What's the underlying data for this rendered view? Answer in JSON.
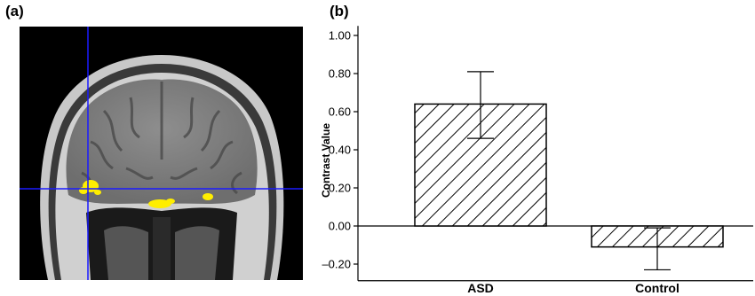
{
  "panels": {
    "a_label": "(a)",
    "b_label": "(b)"
  },
  "brain_image": {
    "description_icon": "mri-coronal-slice-image",
    "crosshair_color": "#1a1aff",
    "activation_color": "#ffee00"
  },
  "chart_data": {
    "type": "bar",
    "categories": [
      "ASD",
      "Control"
    ],
    "values": [
      0.64,
      -0.11
    ],
    "error_upper": [
      0.81,
      -0.01
    ],
    "error_lower": [
      0.46,
      -0.23
    ],
    "ylabel": "Contrast Value",
    "xlabel": "",
    "ylim": [
      -0.25,
      1.05
    ],
    "yticks": [
      -0.2,
      0.0,
      0.2,
      0.4,
      0.6,
      0.8,
      1.0
    ],
    "ytick_labels": [
      "–0.20",
      "0.00",
      "0.20",
      "0.40",
      "0.60",
      "0.80",
      "1.00"
    ],
    "bar_fill": "hatched-diagonal",
    "grid": false
  }
}
